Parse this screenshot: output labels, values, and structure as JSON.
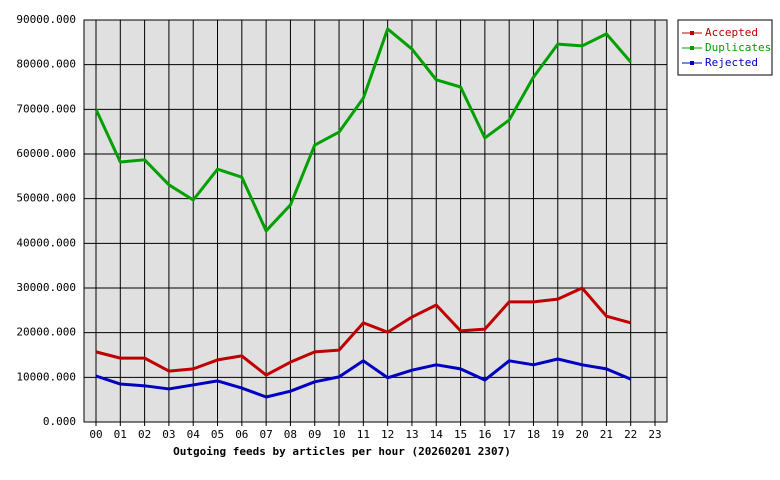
{
  "chart_data": {
    "type": "line",
    "x_label": "Outgoing feeds by articles per hour (20260201 2307)",
    "categories": [
      "00",
      "01",
      "02",
      "03",
      "04",
      "05",
      "06",
      "07",
      "08",
      "09",
      "10",
      "11",
      "12",
      "13",
      "14",
      "15",
      "16",
      "17",
      "18",
      "19",
      "20",
      "21",
      "22",
      "23"
    ],
    "series": [
      {
        "name": "Accepted",
        "color": "#c00000",
        "values": [
          15700,
          14300,
          14300,
          11400,
          11900,
          13900,
          14800,
          10500,
          13400,
          15700,
          16100,
          22200,
          20100,
          23500,
          26200,
          20400,
          20800,
          26900,
          26900,
          27500,
          30000,
          23700,
          22200,
          null
        ]
      },
      {
        "name": "Duplicates",
        "color": "#00a000",
        "values": [
          70000,
          58200,
          58700,
          53100,
          49700,
          56600,
          54800,
          42800,
          48600,
          62000,
          64900,
          72500,
          88000,
          83500,
          76600,
          75000,
          63600,
          67600,
          77200,
          84600,
          84200,
          86900,
          80600,
          null
        ]
      },
      {
        "name": "Rejected",
        "color": "#0000c0",
        "values": [
          10300,
          8500,
          8100,
          7400,
          8300,
          9200,
          7600,
          5600,
          6900,
          9000,
          10100,
          13700,
          9900,
          11600,
          12800,
          11900,
          9400,
          13700,
          12800,
          14100,
          12800,
          11900,
          9600,
          null
        ]
      }
    ],
    "ylim": [
      0,
      90000
    ],
    "yticks": [
      {
        "value": 0,
        "label": "0.000"
      },
      {
        "value": 10000,
        "label": "10000.000"
      },
      {
        "value": 20000,
        "label": "20000.000"
      },
      {
        "value": 30000,
        "label": "30000.000"
      },
      {
        "value": 40000,
        "label": "40000.000"
      },
      {
        "value": 50000,
        "label": "50000.000"
      },
      {
        "value": 60000,
        "label": "60000.000"
      },
      {
        "value": 70000,
        "label": "70000.000"
      },
      {
        "value": 80000,
        "label": "80000.000"
      },
      {
        "value": 90000,
        "label": "90000.000"
      }
    ],
    "grid": true,
    "legend": "top-right"
  }
}
